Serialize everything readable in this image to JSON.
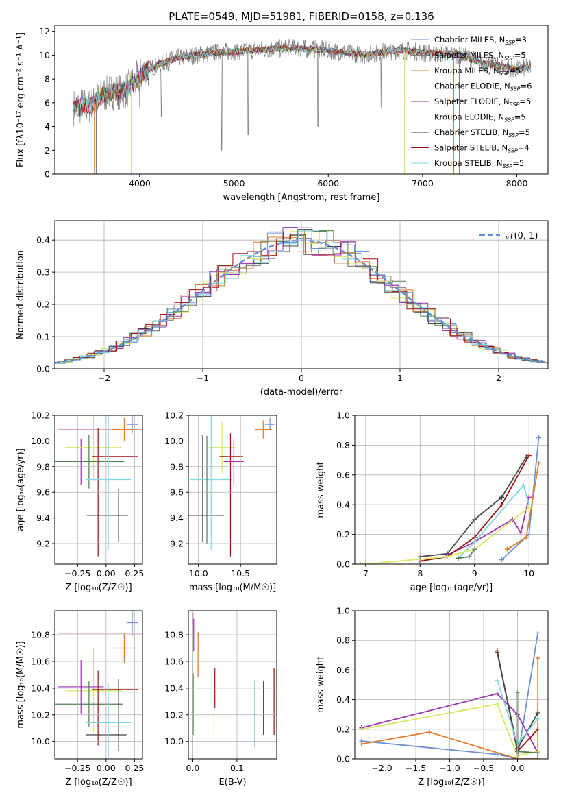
{
  "figure_title": "PLATE=0549, MJD=51981, FIBERID=0158, z=0.136",
  "colors": [
    "#6a8ed8",
    "#7f7f7f",
    "#e07b2a",
    "#4f7f4f",
    "#9b30b0",
    "#d8e860",
    "#444444",
    "#a01010",
    "#80d8e0"
  ],
  "chart_data": [
    {
      "id": "spectrum",
      "type": "line",
      "xlabel": "wavelength [Angstrom, rest frame]",
      "ylabel": "Flux [fλ10⁻¹⁷ erg cm⁻² s⁻¹ A⁻¹]",
      "xlim": [
        3100,
        8330
      ],
      "ylim": [
        0,
        12.5
      ],
      "xticks": [
        4000,
        5000,
        6000,
        7000,
        8000
      ],
      "yticks": [
        0,
        2,
        4,
        6,
        8,
        10,
        12
      ],
      "legend_position": "top-right",
      "series": [
        {
          "name": "Chabrier MILES, N_SSP=3",
          "color": "#6a8ed8"
        },
        {
          "name": "Salpeter MILES, N_SSP=5",
          "color": "#7f7f7f"
        },
        {
          "name": "Kroupa MILES, N_SSP=5",
          "color": "#e07b2a"
        },
        {
          "name": "Chabrier ELODIE, N_SSP=6",
          "color": "#4f7f4f"
        },
        {
          "name": "Salpeter ELODIE, N_SSP=5",
          "color": "#9b30b0"
        },
        {
          "name": "Kroupa ELODIE, N_SSP=5",
          "color": "#d8e860"
        },
        {
          "name": "Chabrier STELIB, N_SSP=5",
          "color": "#444444"
        },
        {
          "name": "Salpeter STELIB, N_SSP=4",
          "color": "#a01010"
        },
        {
          "name": "Kroupa STELIB, N_SSP=5",
          "color": "#80d8e0"
        }
      ],
      "continuum": [
        [
          3300,
          5.6
        ],
        [
          3500,
          5.8
        ],
        [
          3600,
          6.6
        ],
        [
          3700,
          6.9
        ],
        [
          3850,
          7.0
        ],
        [
          3950,
          7.8
        ],
        [
          4050,
          8.6
        ],
        [
          4200,
          9.2
        ],
        [
          4400,
          9.8
        ],
        [
          4600,
          10.0
        ],
        [
          4800,
          10.2
        ],
        [
          5000,
          10.3
        ],
        [
          5200,
          10.4
        ],
        [
          5400,
          10.5
        ],
        [
          5600,
          10.6
        ],
        [
          5800,
          10.5
        ],
        [
          6000,
          10.4
        ],
        [
          6200,
          10.2
        ],
        [
          6400,
          10.0
        ],
        [
          6600,
          10.3
        ],
        [
          6800,
          10.4
        ],
        [
          7000,
          10.2
        ],
        [
          7200,
          10.1
        ],
        [
          7400,
          10.0
        ],
        [
          7600,
          9.4
        ],
        [
          7800,
          9.1
        ],
        [
          8000,
          8.8
        ],
        [
          8150,
          9.0
        ]
      ],
      "dropouts": [
        [
          3520,
          "#e07b2a"
        ],
        [
          3540,
          "#7f7f7f"
        ],
        [
          3910,
          "#d8e860"
        ],
        [
          6810,
          "#d8e860"
        ],
        [
          7330,
          "#e07b2a"
        ],
        [
          7390,
          "#7f7f7f"
        ]
      ],
      "absorption": [
        [
          4870,
          2.0
        ],
        [
          5150,
          3.3
        ],
        [
          5890,
          4.0
        ],
        [
          6560,
          5.5
        ],
        [
          4230,
          4.8
        ],
        [
          4000,
          5.5
        ]
      ]
    },
    {
      "id": "residuals",
      "type": "line",
      "xlabel": "(data-model)/error",
      "ylabel": "Normed distribution",
      "xlim": [
        -2.5,
        2.5
      ],
      "ylim": [
        0,
        0.46
      ],
      "xticks": [
        -2,
        -1,
        0,
        1,
        2
      ],
      "yticks": [
        0.0,
        0.1,
        0.2,
        0.3,
        0.4
      ],
      "legend": "𝒩(0, 1)",
      "legend_position": "top-right",
      "grid": true
    },
    {
      "id": "age_vs_Z",
      "type": "scatter",
      "xlabel": "Z [log₁₀(Z/Z☉)]",
      "ylabel": "age  [log₁₀(age/yr)]",
      "xlim": [
        -0.45,
        0.32
      ],
      "ylim": [
        9.04,
        10.2
      ],
      "xticks": [
        -0.25,
        0.0,
        0.25
      ],
      "yticks": [
        9.2,
        9.4,
        9.6,
        9.8,
        10.0,
        10.2
      ],
      "grid": true,
      "points": [
        {
          "c": "#6a8ed8",
          "x": 0.23,
          "dx": 0.05,
          "y": 10.13,
          "dy": 0.07
        },
        {
          "c": "#e8a0c0",
          "x": -0.05,
          "dx": 0.37,
          "y": 10.09,
          "dy": 0.0
        },
        {
          "c": "#e07b2a",
          "x": 0.16,
          "dx": 0.1,
          "y": 10.09,
          "dy": 0.09
        },
        {
          "c": "#9b30b0",
          "x": -0.22,
          "dx": 0.2,
          "y": 9.84,
          "dy": 0.18
        },
        {
          "c": "#d8e860",
          "x": -0.11,
          "dx": 0.25,
          "y": 9.95,
          "dy": 0.26
        },
        {
          "c": "#4f7f4f",
          "x": -0.15,
          "dx": 0.31,
          "y": 9.84,
          "dy": 0.21
        },
        {
          "c": "#444444",
          "x": 0.11,
          "dx": 0.06,
          "y": 9.42,
          "dy": 0.21
        },
        {
          "c": "#444444",
          "x": 0.01,
          "dx": 0.18,
          "y": 9.42,
          "dy": 0.0
        },
        {
          "c": "#a01010",
          "x": 0.08,
          "dx": 0.2,
          "y": 9.88,
          "dy": 0.0
        },
        {
          "c": "#a01010",
          "x": -0.07,
          "dx": 0.0,
          "y": 9.6,
          "dy": 0.5
        },
        {
          "c": "#80d8e0",
          "x": 0.02,
          "dx": 0.2,
          "y": 9.7,
          "dy": 0.55
        }
      ]
    },
    {
      "id": "age_vs_mass",
      "type": "scatter",
      "xlabel": "mass [log₁₀(M/M☉)]",
      "xlim": [
        9.88,
        10.93
      ],
      "ylim": [
        9.04,
        10.2
      ],
      "xticks": [
        10.0,
        10.5
      ],
      "yticks": [
        9.2,
        9.4,
        9.6,
        9.8,
        10.0,
        10.2
      ],
      "grid": true,
      "points": [
        {
          "c": "#6a8ed8",
          "x": 10.85,
          "dx": 0.06,
          "y": 10.13,
          "dy": 0.05
        },
        {
          "c": "#e07b2a",
          "x": 10.77,
          "dx": 0.1,
          "y": 10.09,
          "dy": 0.07
        },
        {
          "c": "#d8e860",
          "x": 10.28,
          "dx": 0.16,
          "y": 9.95,
          "dy": 0.2
        },
        {
          "c": "#9b30b0",
          "x": 10.42,
          "dx": 0.12,
          "y": 9.84,
          "dy": 0.18
        },
        {
          "c": "#a01010",
          "x": 10.39,
          "dx": 0.14,
          "y": 9.88,
          "dy": 0.0
        },
        {
          "c": "#444444",
          "x": 10.05,
          "dx": 0.25,
          "y": 9.42,
          "dy": 0.0
        },
        {
          "c": "#444444",
          "x": 10.05,
          "dx": 0.0,
          "y": 9.63,
          "dy": 0.42
        },
        {
          "c": "#80d8e0",
          "x": 10.15,
          "dx": 0.25,
          "y": 9.7,
          "dy": 0.55
        },
        {
          "c": "#4f7f4f",
          "x": 10.1,
          "dx": 0.0,
          "y": 9.62,
          "dy": 0.42
        },
        {
          "c": "#a01010",
          "x": 10.38,
          "dx": 0.0,
          "y": 9.58,
          "dy": 0.48
        }
      ]
    },
    {
      "id": "massweight_vs_age",
      "type": "line",
      "xlabel": "age  [log₁₀(age/yr)]",
      "ylabel": "mass weight",
      "xlim": [
        6.8,
        10.35
      ],
      "ylim": [
        0,
        1.0
      ],
      "xticks": [
        7,
        8,
        9,
        10
      ],
      "yticks": [
        0.0,
        0.2,
        0.4,
        0.6,
        0.8,
        1.0
      ],
      "grid": true,
      "series": [
        {
          "c": "#6a8ed8",
          "pts": [
            [
              9.5,
              0.03
            ],
            [
              10.0,
              0.2
            ],
            [
              10.18,
              0.85
            ]
          ]
        },
        {
          "c": "#e07b2a",
          "pts": [
            [
              9.6,
              0.1
            ],
            [
              9.95,
              0.18
            ],
            [
              10.18,
              0.68
            ]
          ]
        },
        {
          "c": "#444444",
          "pts": [
            [
              8.0,
              0.05
            ],
            [
              8.5,
              0.07
            ],
            [
              9.0,
              0.3
            ],
            [
              9.5,
              0.45
            ],
            [
              9.95,
              0.72
            ]
          ]
        },
        {
          "c": "#9b30b0",
          "pts": [
            [
              8.5,
              0.06
            ],
            [
              9.0,
              0.15
            ],
            [
              9.7,
              0.3
            ],
            [
              9.85,
              0.21
            ],
            [
              10.0,
              0.45
            ]
          ]
        },
        {
          "c": "#a01010",
          "pts": [
            [
              8.0,
              0.02
            ],
            [
              8.5,
              0.05
            ],
            [
              9.0,
              0.18
            ],
            [
              9.5,
              0.4
            ],
            [
              10.0,
              0.73
            ]
          ]
        },
        {
          "c": "#80d8e0",
          "pts": [
            [
              8.7,
              0.04
            ],
            [
              9.0,
              0.15
            ],
            [
              9.9,
              0.53
            ],
            [
              10.0,
              0.4
            ]
          ]
        },
        {
          "c": "#d8e860",
          "pts": [
            [
              6.9,
              0.0
            ],
            [
              7.0,
              0.0
            ],
            [
              8.5,
              0.05
            ],
            [
              9.0,
              0.1
            ],
            [
              10.0,
              0.38
            ]
          ]
        },
        {
          "c": "#4f7f4f",
          "pts": [
            [
              8.7,
              0.04
            ],
            [
              8.9,
              0.05
            ],
            [
              9.0,
              0.1
            ]
          ]
        }
      ]
    },
    {
      "id": "mass_vs_Z",
      "type": "scatter",
      "xlabel": "Z [log₁₀(Z/Z☉)]",
      "ylabel": "mass [log₁₀(M/M☉)]",
      "xlim": [
        -0.45,
        0.32
      ],
      "ylim": [
        9.87,
        10.98
      ],
      "xticks": [
        -0.25,
        0.0,
        0.25
      ],
      "yticks": [
        10.0,
        10.2,
        10.4,
        10.6,
        10.8
      ],
      "grid": true,
      "points": [
        {
          "c": "#6a8ed8",
          "x": 0.23,
          "dx": 0.05,
          "y": 10.89,
          "dy": 0.1
        },
        {
          "c": "#e8a0c0",
          "x": -0.05,
          "dx": 0.37,
          "y": 10.81,
          "dy": 0.0
        },
        {
          "c": "#e07b2a",
          "x": 0.16,
          "dx": 0.12,
          "y": 10.7,
          "dy": 0.11
        },
        {
          "c": "#d8e860",
          "x": -0.11,
          "dx": 0.25,
          "y": 10.38,
          "dy": 0.32
        },
        {
          "c": "#9b30b0",
          "x": -0.22,
          "dx": 0.2,
          "y": 10.41,
          "dy": 0.2
        },
        {
          "c": "#4f7f4f",
          "x": -0.15,
          "dx": 0.3,
          "y": 10.28,
          "dy": 0.17
        },
        {
          "c": "#444444",
          "x": 0.0,
          "dx": 0.18,
          "y": 10.05,
          "dy": 0.0
        },
        {
          "c": "#444444",
          "x": 0.11,
          "dx": 0.0,
          "y": 10.2,
          "dy": 0.27
        },
        {
          "c": "#a01010",
          "x": 0.08,
          "dx": 0.2,
          "y": 10.39,
          "dy": 0.0
        },
        {
          "c": "#a01010",
          "x": -0.07,
          "dx": 0.0,
          "y": 10.25,
          "dy": 0.28
        },
        {
          "c": "#80d8e0",
          "x": 0.02,
          "dx": 0.2,
          "y": 10.14,
          "dy": 0.3
        }
      ]
    },
    {
      "id": "mass_vs_EBV",
      "type": "scatter",
      "xlabel": "E(B-V)",
      "xlim": [
        -0.01,
        0.19
      ],
      "ylim": [
        9.87,
        10.98
      ],
      "xticks": [
        0.0,
        0.1
      ],
      "yticks": [
        10.0,
        10.2,
        10.4,
        10.6,
        10.8
      ],
      "grid": true,
      "points": [
        {
          "c": "#e8a0c0",
          "x": 0.001,
          "dx": 0.0,
          "y": 10.92,
          "dy": 0.04
        },
        {
          "c": "#9b30b0",
          "x": 0.002,
          "dx": 0.0,
          "y": 10.8,
          "dy": 0.12
        },
        {
          "c": "#e07b2a",
          "x": 0.012,
          "dx": 0.0,
          "y": 10.65,
          "dy": 0.17
        },
        {
          "c": "#4f7f4f",
          "x": 0.001,
          "dx": 0.0,
          "y": 10.28,
          "dy": 0.23
        },
        {
          "c": "#d8e860",
          "x": 0.048,
          "dx": 0.0,
          "y": 10.22,
          "dy": 0.17
        },
        {
          "c": "#a01010",
          "x": 0.05,
          "dx": 0.0,
          "y": 10.4,
          "dy": 0.15
        },
        {
          "c": "#80d8e0",
          "x": 0.14,
          "dx": 0.0,
          "y": 10.2,
          "dy": 0.25
        },
        {
          "c": "#444444",
          "x": 0.16,
          "dx": 0.0,
          "y": 10.25,
          "dy": 0.2
        },
        {
          "c": "#a01010",
          "x": 0.184,
          "dx": 0.0,
          "y": 10.3,
          "dy": 0.25
        }
      ]
    },
    {
      "id": "massweight_vs_Z",
      "type": "line",
      "xlabel": "Z [log₁₀(Z/Z☉)]",
      "ylabel": "mass weight",
      "xlim": [
        -2.4,
        0.45
      ],
      "ylim": [
        0,
        1.0
      ],
      "xticks": [
        -2.0,
        -1.5,
        -1.0,
        -0.5,
        0.0
      ],
      "yticks": [
        0.0,
        0.2,
        0.4,
        0.6,
        0.8,
        1.0
      ],
      "grid": true,
      "series": [
        {
          "c": "#6a8ed8",
          "pts": [
            [
              -2.3,
              0.12
            ],
            [
              -0.3,
              0.03
            ],
            [
              0.0,
              0.0
            ],
            [
              0.3,
              0.85
            ]
          ]
        },
        {
          "c": "#e07b2a",
          "pts": [
            [
              -2.3,
              0.1
            ],
            [
              -1.3,
              0.18
            ],
            [
              0.0,
              0.0
            ],
            [
              0.3,
              0.0
            ],
            [
              0.3,
              0.68
            ]
          ]
        },
        {
          "c": "#9b30b0",
          "pts": [
            [
              -2.3,
              0.21
            ],
            [
              -0.3,
              0.44
            ],
            [
              0.0,
              0.3
            ],
            [
              0.3,
              0.04
            ]
          ]
        },
        {
          "c": "#d8e860",
          "pts": [
            [
              -2.3,
              0.2
            ],
            [
              -0.3,
              0.37
            ],
            [
              0.0,
              0.02
            ],
            [
              0.3,
              0.05
            ]
          ]
        },
        {
          "c": "#a01010",
          "pts": [
            [
              -0.3,
              0.73
            ],
            [
              0.0,
              0.05
            ],
            [
              0.3,
              0.2
            ]
          ]
        },
        {
          "c": "#444444",
          "pts": [
            [
              -0.3,
              0.72
            ],
            [
              0.0,
              0.07
            ],
            [
              0.3,
              0.31
            ]
          ]
        },
        {
          "c": "#80d8e0",
          "pts": [
            [
              -0.3,
              0.53
            ],
            [
              0.0,
              0.1
            ],
            [
              0.3,
              0.27
            ]
          ]
        },
        {
          "c": "#4f7f4f",
          "pts": [
            [
              0.0,
              0.45
            ],
            [
              0.0,
              0.05
            ],
            [
              0.3,
              0.04
            ]
          ]
        }
      ]
    }
  ]
}
